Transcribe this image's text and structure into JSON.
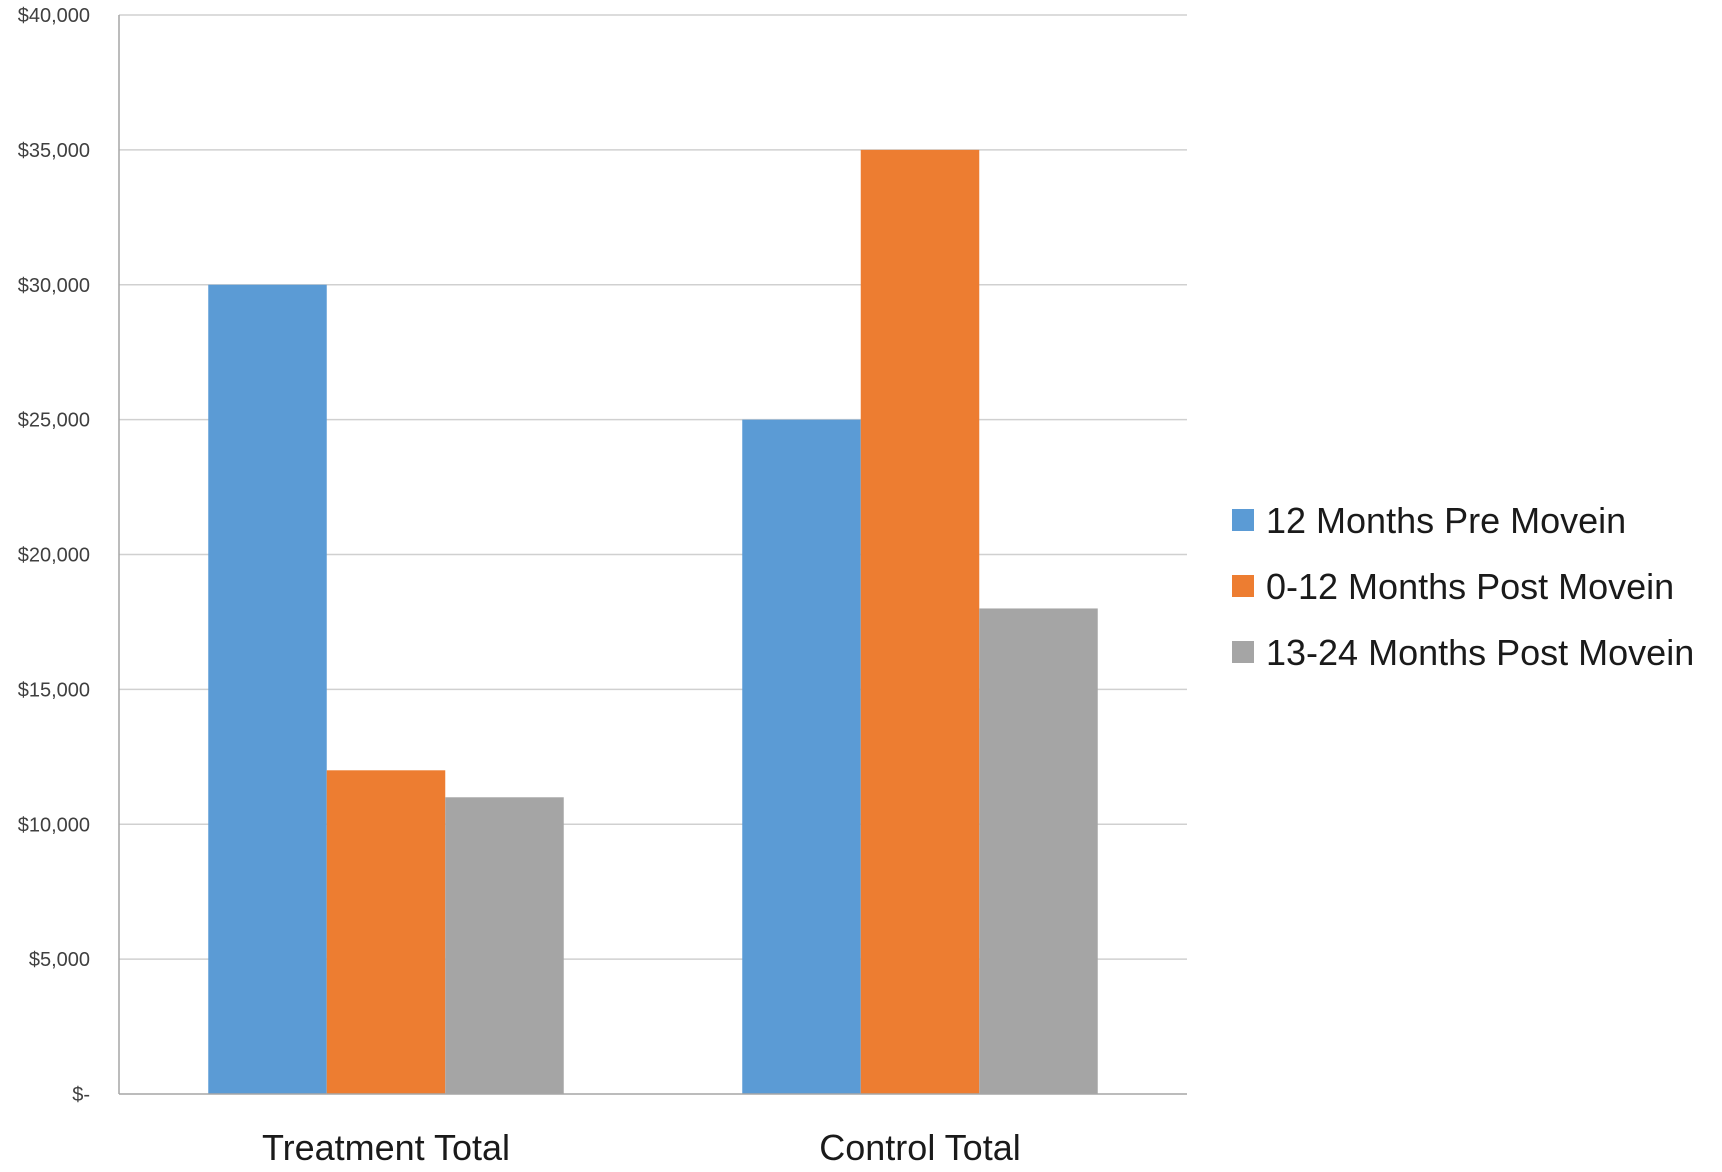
{
  "chart_data": {
    "type": "bar",
    "categories": [
      "Treatment Total",
      "Control Total"
    ],
    "series": [
      {
        "name": "12 Months Pre Movein",
        "values": [
          30000,
          25000
        ],
        "color": "#5b9bd5"
      },
      {
        "name": "0-12 Months Post Movein",
        "values": [
          12000,
          35000
        ],
        "color": "#ed7d31"
      },
      {
        "name": "13-24 Months Post Movein",
        "values": [
          11000,
          18000
        ],
        "color": "#a5a5a5"
      }
    ],
    "ylim": [
      0,
      40000
    ],
    "yticks": [
      0,
      5000,
      10000,
      15000,
      20000,
      25000,
      30000,
      35000,
      40000
    ],
    "ytick_labels": [
      "$-",
      "$5,000",
      "$10,000",
      "$15,000",
      "$20,000",
      "$25,000",
      "$30,000",
      "$35,000",
      "$40,000"
    ],
    "grid": true,
    "legend_position": "right",
    "gridline_color": "#d0d0d0",
    "axis_color": "#a6a6a6"
  }
}
